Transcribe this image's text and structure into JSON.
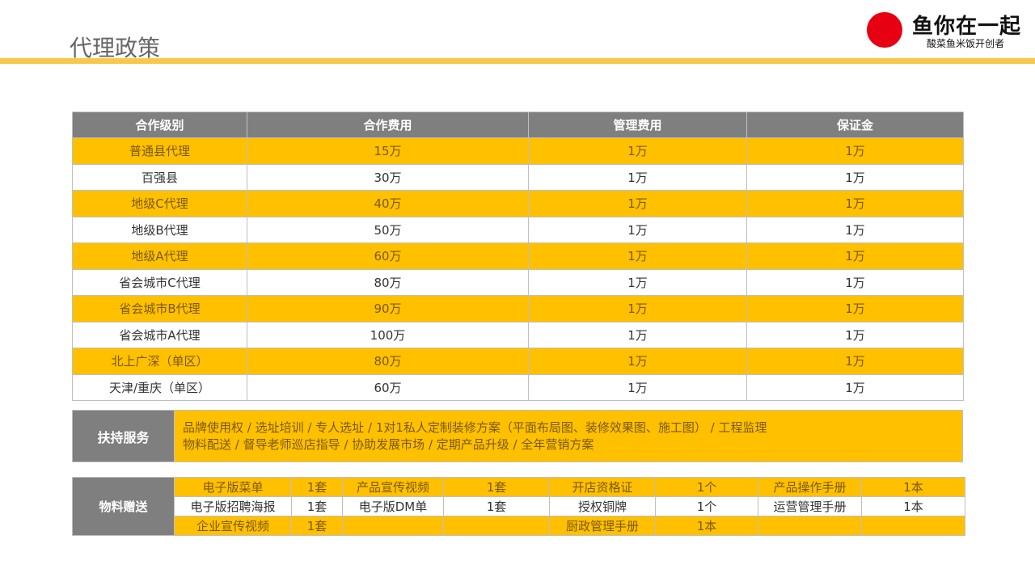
{
  "title": "代理政策",
  "logo": {
    "name": "鱼你在一起",
    "slogan": "酸菜鱼米饭开创者",
    "color": "#e60012"
  },
  "colors": {
    "accent": "#ffc000",
    "header": "#7f7f7f",
    "bar": "#f7c94a"
  },
  "table": {
    "headers": [
      "合作级别",
      "合作费用",
      "管理费用",
      "保证金"
    ],
    "rows": [
      [
        "普通县代理",
        "15万",
        "1万",
        "1万"
      ],
      [
        "百强县",
        "30万",
        "1万",
        "1万"
      ],
      [
        "地级C代理",
        "40万",
        "1万",
        "1万"
      ],
      [
        "地级B代理",
        "50万",
        "1万",
        "1万"
      ],
      [
        "地级A代理",
        "60万",
        "1万",
        "1万"
      ],
      [
        "省会城市C代理",
        "80万",
        "1万",
        "1万"
      ],
      [
        "省会城市B代理",
        "90万",
        "1万",
        "1万"
      ],
      [
        "省会城市A代理",
        "100万",
        "1万",
        "1万"
      ],
      [
        "北上广深（单区）",
        "80万",
        "1万",
        "1万"
      ],
      [
        "天津/重庆（单区）",
        "60万",
        "1万",
        "1万"
      ]
    ]
  },
  "support": {
    "label": "扶持服务",
    "lines": [
      "品牌使用权 / 选址培训 / 专人选址 / 1对1私人定制装修方案（平面布局图、装修效果图、施工图） / 工程监理",
      "物料配送 / 督导老师巡店指导 / 协助发展市场 / 定期产品升级 / 全年营销方案"
    ]
  },
  "materials": {
    "label": "物料赠送",
    "rows": [
      [
        "电子版菜单",
        "1套",
        "产品宣传视频",
        "1套",
        "开店资格证",
        "1个",
        "产品操作手册",
        "1本"
      ],
      [
        "电子版招聘海报",
        "1套",
        "电子版DM单",
        "1套",
        "授权铜牌",
        "1个",
        "运营管理手册",
        "1本"
      ],
      [
        "企业宣传视频",
        "1套",
        "",
        "",
        "厨政管理手册",
        "1本",
        "",
        ""
      ]
    ]
  }
}
